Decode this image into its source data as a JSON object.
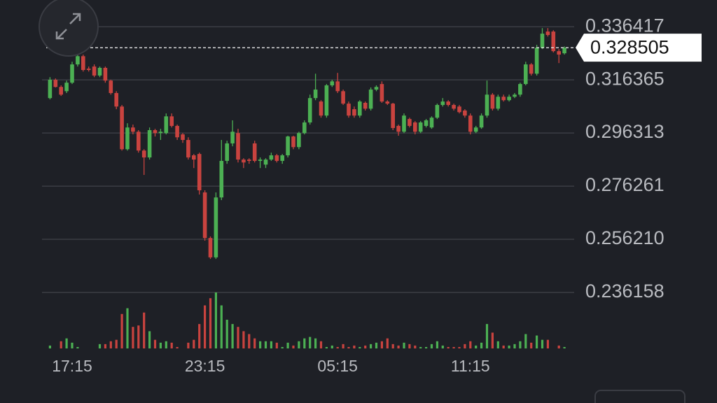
{
  "chart_data": {
    "type": "candlestick",
    "last_price": 0.328505,
    "ylim": [
      0.2355,
      0.3465
    ],
    "yticks": [
      0.336417,
      0.316365,
      0.296313,
      0.276261,
      {
        "value": 0.25621,
        "label": "0.256210"
      },
      0.236158
    ],
    "grid": true,
    "up_color": "#4cb053",
    "down_color": "#c9433f",
    "categories": [
      null,
      null,
      null,
      null,
      "17:15",
      null,
      null,
      null,
      null,
      null,
      null,
      null,
      null,
      null,
      null,
      null,
      null,
      null,
      null,
      null,
      null,
      null,
      null,
      null,
      null,
      null,
      null,
      null,
      "23:15",
      null,
      null,
      null,
      null,
      null,
      null,
      null,
      null,
      null,
      null,
      null,
      null,
      null,
      null,
      null,
      null,
      null,
      null,
      null,
      null,
      null,
      null,
      null,
      "05:15",
      null,
      null,
      null,
      null,
      null,
      null,
      null,
      null,
      null,
      null,
      null,
      null,
      null,
      null,
      null,
      null,
      null,
      null,
      null,
      null,
      null,
      null,
      null,
      "11:15",
      null,
      null,
      null,
      null,
      null,
      null,
      null,
      null,
      null,
      null,
      null,
      null,
      null,
      null,
      null,
      null,
      null
    ],
    "open": [
      0.3095,
      0.3164,
      0.3137,
      0.3121,
      0.3153,
      0.3222,
      0.3253,
      0.3206,
      0.3214,
      0.318,
      0.3209,
      0.3161,
      0.3114,
      0.3063,
      0.2902,
      0.2984,
      0.2968,
      0.2897,
      0.2871,
      0.2974,
      0.2963,
      0.2963,
      0.3026,
      0.299,
      0.2958,
      0.2937,
      0.2879,
      0.2884,
      0.2739,
      0.2567,
      0.2494,
      0.272,
      0.2858,
      0.2924,
      0.2963,
      0.2863,
      0.2863,
      0.2924,
      0.2858,
      0.2844,
      0.2863,
      0.2879,
      0.2858,
      0.2879,
      0.295,
      0.291,
      0.2963,
      0.3003,
      0.3095,
      0.3082,
      0.3029,
      0.3143,
      0.3158,
      0.3121,
      0.3074,
      0.3053,
      0.3029,
      0.3077,
      0.3055,
      0.3127,
      0.3148,
      0.3082,
      0.3074,
      0.299,
      0.2968,
      0.3016,
      0.3003,
      0.2968,
      0.299,
      0.2984,
      0.3021,
      0.3069,
      0.3082,
      0.3069,
      0.3063,
      0.3048,
      0.3029,
      0.2968,
      0.2984,
      0.3029,
      0.3108,
      0.3055,
      0.31,
      0.3087,
      0.31,
      0.3108,
      0.3148,
      0.3222,
      0.3187,
      0.3285,
      0.3346,
      0.3346,
      0.3272,
      0.3264
    ],
    "high": [
      0.3174,
      0.3169,
      0.3143,
      0.3161,
      0.3232,
      0.3264,
      0.3259,
      0.3214,
      0.3222,
      0.3214,
      0.3214,
      0.3164,
      0.3121,
      0.3069,
      0.3,
      0.2995,
      0.2974,
      0.2902,
      0.2984,
      0.2979,
      0.2979,
      0.3037,
      0.3037,
      0.2995,
      0.2963,
      0.2947,
      0.2884,
      0.2889,
      0.2747,
      0.2573,
      0.2739,
      0.2937,
      0.2934,
      0.3011,
      0.2979,
      0.2868,
      0.2868,
      0.2934,
      0.2871,
      0.2868,
      0.2889,
      0.2884,
      0.2884,
      0.2953,
      0.2953,
      0.2968,
      0.3011,
      0.3108,
      0.3187,
      0.3087,
      0.3148,
      0.3164,
      0.319,
      0.3127,
      0.3082,
      0.3063,
      0.3087,
      0.3082,
      0.3135,
      0.3143,
      0.3158,
      0.3087,
      0.3077,
      0.2995,
      0.3037,
      0.3021,
      0.3008,
      0.3008,
      0.3016,
      0.3026,
      0.3074,
      0.3095,
      0.3087,
      0.3074,
      0.3069,
      0.3053,
      0.3037,
      0.299,
      0.3037,
      0.3161,
      0.3114,
      0.3108,
      0.3108,
      0.3108,
      0.3114,
      0.3153,
      0.3232,
      0.3227,
      0.3296,
      0.3359,
      0.3359,
      0.3351,
      0.328,
      0.329
    ],
    "low": [
      0.309,
      0.3135,
      0.3103,
      0.3114,
      0.3148,
      0.3214,
      0.3195,
      0.3195,
      0.3174,
      0.3174,
      0.3153,
      0.3108,
      0.3053,
      0.2897,
      0.2897,
      0.2958,
      0.2889,
      0.2805,
      0.2863,
      0.295,
      0.2937,
      0.2958,
      0.2984,
      0.2937,
      0.2926,
      0.2863,
      0.2831,
      0.2731,
      0.2557,
      0.2488,
      0.2488,
      0.271,
      0.2847,
      0.2913,
      0.2852,
      0.2831,
      0.2847,
      0.2852,
      0.2831,
      0.2831,
      0.2858,
      0.2852,
      0.2847,
      0.2871,
      0.2902,
      0.2902,
      0.2958,
      0.2995,
      0.3087,
      0.3021,
      0.3021,
      0.3137,
      0.3114,
      0.3069,
      0.3021,
      0.3021,
      0.3021,
      0.3048,
      0.3048,
      0.3121,
      0.3077,
      0.3069,
      0.2974,
      0.2953,
      0.2963,
      0.2984,
      0.2958,
      0.2963,
      0.2984,
      0.2979,
      0.3016,
      0.3063,
      0.3063,
      0.3048,
      0.3037,
      0.3021,
      0.2958,
      0.2963,
      0.2979,
      0.3021,
      0.3048,
      0.3048,
      0.3082,
      0.3082,
      0.3095,
      0.31,
      0.3143,
      0.318,
      0.318,
      0.328,
      0.3327,
      0.3267,
      0.3227,
      0.3259
    ],
    "close": [
      0.3164,
      0.3137,
      0.3108,
      0.3153,
      0.3222,
      0.3253,
      0.3201,
      0.3201,
      0.318,
      0.3209,
      0.3161,
      0.3114,
      0.3063,
      0.2902,
      0.2984,
      0.2968,
      0.2897,
      0.2871,
      0.2974,
      0.2963,
      0.2968,
      0.3026,
      0.299,
      0.2947,
      0.2937,
      0.2871,
      0.2863,
      0.2747,
      0.2567,
      0.2494,
      0.272,
      0.2858,
      0.2924,
      0.2968,
      0.2863,
      0.2852,
      0.2858,
      0.2858,
      0.2863,
      0.2863,
      0.2879,
      0.2858,
      0.2879,
      0.295,
      0.291,
      0.2963,
      0.3003,
      0.3095,
      0.3127,
      0.3029,
      0.3143,
      0.3158,
      0.3121,
      0.3074,
      0.3029,
      0.3029,
      0.3082,
      0.3055,
      0.3127,
      0.3137,
      0.3082,
      0.3074,
      0.2982,
      0.2968,
      0.3029,
      0.299,
      0.2968,
      0.3003,
      0.3011,
      0.3021,
      0.3069,
      0.3082,
      0.3069,
      0.3055,
      0.3042,
      0.3029,
      0.2968,
      0.2984,
      0.3029,
      0.3108,
      0.3055,
      0.31,
      0.3087,
      0.31,
      0.3108,
      0.3148,
      0.3222,
      0.3187,
      0.3285,
      0.3338,
      0.3333,
      0.3272,
      0.3259,
      0.3285
    ],
    "volume": [
      4,
      0,
      10,
      14,
      8,
      2,
      0,
      0,
      0,
      6,
      6,
      10,
      12,
      48,
      56,
      30,
      32,
      50,
      24,
      12,
      8,
      10,
      8,
      2,
      0,
      8,
      12,
      34,
      60,
      70,
      78,
      60,
      40,
      34,
      30,
      24,
      20,
      14,
      10,
      10,
      10,
      8,
      2,
      8,
      4,
      10,
      14,
      16,
      14,
      10,
      2,
      4,
      2,
      6,
      2,
      4,
      2,
      4,
      6,
      8,
      10,
      14,
      6,
      4,
      8,
      6,
      4,
      2,
      2,
      6,
      10,
      4,
      2,
      2,
      2,
      6,
      10,
      4,
      8,
      34,
      22,
      10,
      4,
      4,
      6,
      10,
      20,
      8,
      18,
      12,
      12,
      0,
      4,
      2
    ]
  }
}
